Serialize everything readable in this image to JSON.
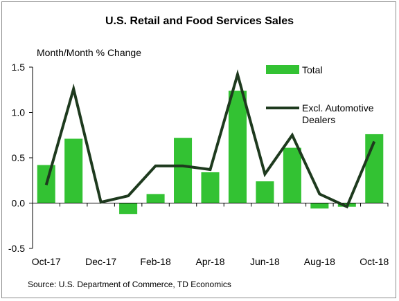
{
  "title": "U.S. Retail and Food Services Sales",
  "source": "Source: U.S. Department of Commerce, TD Economics",
  "colors": {
    "bar": "#33c233",
    "line": "#1e3a1e",
    "axis": "#000000",
    "frame": "#8c8c8c"
  },
  "chart_data": {
    "type": "bar",
    "title": "U.S. Retail and Food Services Sales",
    "ylabel": "Month/Month % Change",
    "xlabel": "",
    "ylim": [
      -0.5,
      1.5
    ],
    "yticks": [
      "1.5",
      "1.0",
      "0.5",
      "0.0",
      "-0.5"
    ],
    "ytick_values": [
      1.5,
      1.0,
      0.5,
      0.0,
      -0.5
    ],
    "categories": [
      "Oct-17",
      "Nov-17",
      "Dec-17",
      "Jan-18",
      "Feb-18",
      "Mar-18",
      "Apr-18",
      "May-18",
      "Jun-18",
      "Jul-18",
      "Aug-18",
      "Sep-18",
      "Oct-18"
    ],
    "xtick_labels": [
      "Oct-17",
      "",
      "Dec-17",
      "",
      "Feb-18",
      "",
      "Apr-18",
      "",
      "Jun-18",
      "",
      "Aug-18",
      "",
      "Oct-18"
    ],
    "legend_position": "right",
    "series": [
      {
        "name": "Total",
        "type": "bar",
        "values": [
          0.42,
          0.71,
          0.0,
          -0.12,
          0.1,
          0.72,
          0.34,
          1.24,
          0.24,
          0.61,
          -0.06,
          -0.04,
          0.76
        ]
      },
      {
        "name": "Excl. Automotive Dealers",
        "type": "line",
        "values": [
          0.2,
          1.26,
          0.01,
          0.08,
          0.41,
          0.41,
          0.37,
          1.42,
          0.32,
          0.75,
          0.1,
          -0.04,
          0.68
        ]
      }
    ],
    "legend_lines": [
      [
        "Total"
      ],
      [
        "Excl. Automotive",
        "Dealers"
      ]
    ]
  }
}
